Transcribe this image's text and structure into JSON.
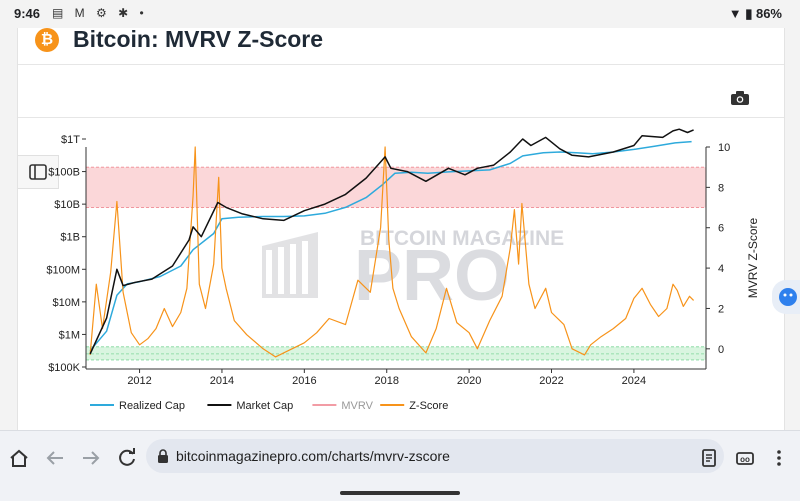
{
  "status_bar": {
    "time": "9:46",
    "notification_icons": "▤ M ⚙ ✱ •",
    "battery": "86%"
  },
  "page": {
    "title": "Bitcoin: MVRV Z-Score",
    "logo_letter": "₿"
  },
  "chart_data": {
    "type": "line",
    "title": "Bitcoin: MVRV Z-Score",
    "watermark": [
      "BITCOIN MAGAZINE",
      "PRO"
    ],
    "x_ticks": [
      "2012",
      "2014",
      "2016",
      "2018",
      "2020",
      "2022",
      "2024"
    ],
    "x_range": [
      2010.7,
      2025.75
    ],
    "y_left": {
      "label": "",
      "scale": "log",
      "ticks": [
        "$100K",
        "$1M",
        "$10M",
        "$100M",
        "$1B",
        "$10B",
        "$100B",
        "$1T"
      ],
      "range_log10": [
        5,
        12
      ]
    },
    "y_right": {
      "label": "MVRV Z-Score",
      "ticks": [
        "0",
        "2",
        "4",
        "6",
        "8",
        "10"
      ],
      "range": [
        -1,
        10
      ]
    },
    "bands": [
      {
        "name": "overvalued",
        "from": 7,
        "to": 9,
        "axis": "right",
        "color": "#fbd7d9"
      },
      {
        "name": "undervalued",
        "from": -0.55,
        "to": 0.1,
        "axis": "right",
        "color": "#d9f5e0"
      }
    ],
    "series": [
      {
        "name": "Realized Cap",
        "color": "#2eaadc",
        "axis": "left",
        "x": [
          2010.8,
          2011.2,
          2011.45,
          2011.7,
          2012.0,
          2012.5,
          2013.0,
          2013.3,
          2013.8,
          2014.0,
          2014.4,
          2015.0,
          2015.5,
          2016.0,
          2016.5,
          2017.0,
          2017.5,
          2017.9,
          2018.2,
          2018.6,
          2019.0,
          2019.5,
          2020.0,
          2020.5,
          2021.0,
          2021.3,
          2021.8,
          2022.2,
          2022.6,
          2023.0,
          2023.5,
          2024.0,
          2024.5,
          2025.0,
          2025.4
        ],
        "values_log10": [
          5.5,
          6.1,
          7.2,
          7.55,
          7.62,
          7.78,
          8.1,
          8.6,
          9.1,
          9.55,
          9.6,
          9.62,
          9.62,
          9.64,
          9.72,
          9.9,
          10.2,
          10.6,
          10.95,
          10.98,
          10.95,
          10.99,
          11.02,
          11.05,
          11.25,
          11.48,
          11.58,
          11.6,
          11.58,
          11.55,
          11.6,
          11.68,
          11.78,
          11.88,
          11.92
        ]
      },
      {
        "name": "Market Cap",
        "color": "#111111",
        "axis": "left",
        "x": [
          2010.8,
          2011.2,
          2011.45,
          2011.6,
          2011.9,
          2012.3,
          2012.8,
          2013.2,
          2013.3,
          2013.5,
          2013.9,
          2014.1,
          2014.5,
          2015.0,
          2015.5,
          2016.0,
          2016.5,
          2017.0,
          2017.5,
          2017.96,
          2018.1,
          2018.5,
          2018.95,
          2019.5,
          2019.9,
          2020.2,
          2020.6,
          2021.0,
          2021.3,
          2021.5,
          2021.86,
          2022.2,
          2022.5,
          2022.9,
          2023.5,
          2024.0,
          2024.2,
          2024.7,
          2024.95,
          2025.1,
          2025.3,
          2025.45
        ],
        "values_log10": [
          5.4,
          6.5,
          8.0,
          7.5,
          7.6,
          7.7,
          8.1,
          8.9,
          9.3,
          9.0,
          10.05,
          9.9,
          9.7,
          9.55,
          9.5,
          9.8,
          10.0,
          10.3,
          10.8,
          11.45,
          11.1,
          11.0,
          10.7,
          11.1,
          10.9,
          11.1,
          11.2,
          11.6,
          12.0,
          11.8,
          12.05,
          11.7,
          11.5,
          11.45,
          11.6,
          11.8,
          12.1,
          12.05,
          12.25,
          12.3,
          12.2,
          12.28
        ]
      },
      {
        "name": "MVRV",
        "color": "#f29ca5",
        "axis": "right",
        "x": [],
        "values": []
      },
      {
        "name": "Z-Score",
        "color": "#f7931a",
        "axis": "right",
        "x": [
          2010.8,
          2010.95,
          2011.1,
          2011.3,
          2011.45,
          2011.6,
          2011.8,
          2012.0,
          2012.2,
          2012.4,
          2012.6,
          2012.8,
          2013.0,
          2013.15,
          2013.3,
          2013.35,
          2013.45,
          2013.6,
          2013.8,
          2013.92,
          2014.0,
          2014.1,
          2014.3,
          2014.6,
          2015.0,
          2015.3,
          2015.6,
          2016.0,
          2016.3,
          2016.6,
          2017.0,
          2017.3,
          2017.6,
          2017.85,
          2017.96,
          2018.05,
          2018.15,
          2018.3,
          2018.6,
          2018.95,
          2019.2,
          2019.45,
          2019.7,
          2020.0,
          2020.2,
          2020.5,
          2020.8,
          2021.0,
          2021.1,
          2021.2,
          2021.28,
          2021.45,
          2021.6,
          2021.86,
          2022.0,
          2022.3,
          2022.5,
          2022.8,
          2022.95,
          2023.2,
          2023.5,
          2023.8,
          2024.0,
          2024.2,
          2024.4,
          2024.6,
          2024.8,
          2024.95,
          2025.05,
          2025.2,
          2025.35,
          2025.45
        ],
        "values": [
          -0.3,
          3.2,
          1.0,
          3.8,
          7.3,
          2.8,
          0.8,
          0.2,
          0.5,
          1.0,
          2.0,
          1.1,
          1.8,
          3.0,
          7.6,
          10.0,
          3.2,
          2.0,
          4.2,
          8.5,
          4.0,
          3.0,
          1.4,
          0.7,
          0.0,
          -0.4,
          -0.1,
          0.3,
          0.8,
          1.5,
          1.2,
          3.4,
          2.8,
          6.0,
          10.0,
          5.4,
          3.0,
          2.0,
          0.6,
          -0.2,
          1.0,
          3.0,
          1.3,
          0.8,
          0.0,
          1.4,
          2.6,
          5.0,
          6.9,
          4.2,
          7.2,
          3.2,
          2.0,
          3.0,
          1.8,
          1.2,
          0.0,
          -0.3,
          0.2,
          0.6,
          1.0,
          1.5,
          2.5,
          3.0,
          2.2,
          1.6,
          2.0,
          3.2,
          2.9,
          2.1,
          2.6,
          2.4
        ]
      }
    ],
    "legend": {
      "position": "bottom-left"
    }
  },
  "browser": {
    "url": "bitcoinmagazinepro.com/charts/mvrv-zscore"
  }
}
